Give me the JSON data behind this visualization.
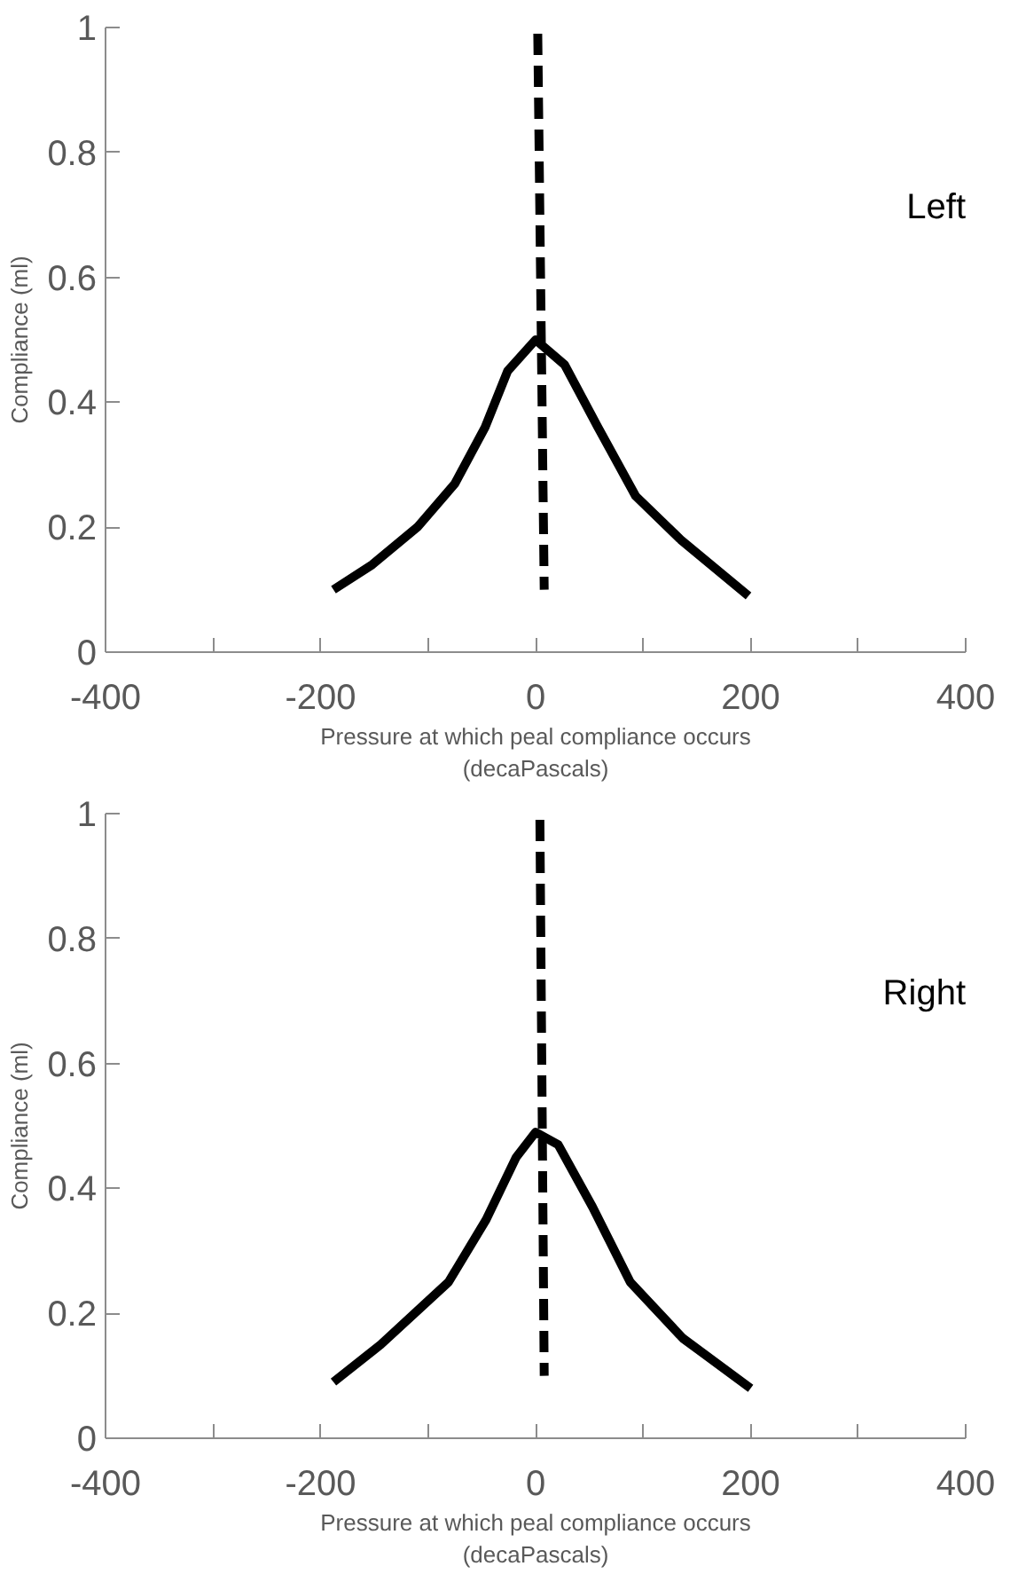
{
  "chart_data": [
    {
      "type": "line",
      "xlabel": "Pressure at which peal compliance occurs\n(decaPascals)",
      "ylabel": "Compliance (ml)",
      "annotations": [
        "Left"
      ],
      "xlim": [
        -400,
        400
      ],
      "ylim": [
        0,
        1
      ],
      "xticks": [
        -400,
        {
          "value": -300,
          "label": null
        },
        -200,
        {
          "value": -100,
          "label": null
        },
        0,
        {
          "value": 100,
          "label": null
        },
        200,
        {
          "value": 300,
          "label": null
        },
        400
      ],
      "yticks": [
        0,
        0.2,
        0.4,
        0.6,
        0.8,
        1
      ],
      "grid": false,
      "series": [
        {
          "color": "#000000",
          "line_style": "solid",
          "x": [
            -188,
            -152,
            -110,
            -75,
            -47,
            -26,
            0,
            27,
            58,
            93,
            135,
            198
          ],
          "values": [
            0.1,
            0.14,
            0.2,
            0.27,
            0.36,
            0.45,
            0.5,
            0.46,
            0.36,
            0.25,
            0.18,
            0.09
          ]
        },
        {
          "color": "#000000",
          "line_style": "dashed",
          "x": [
            2,
            8
          ],
          "values": [
            0.99,
            0.1
          ]
        }
      ]
    },
    {
      "type": "line",
      "xlabel": "Pressure at which peal compliance occurs\n(decaPascals)",
      "ylabel": "Compliance (ml)",
      "annotations": [
        "Right"
      ],
      "xlim": [
        -400,
        400
      ],
      "ylim": [
        0,
        1
      ],
      "xticks": [
        -400,
        {
          "value": -300,
          "label": null
        },
        -200,
        {
          "value": -100,
          "label": null
        },
        0,
        {
          "value": 100,
          "label": null
        },
        200,
        {
          "value": 300,
          "label": null
        },
        400
      ],
      "yticks": [
        0,
        0.2,
        0.4,
        0.6,
        0.8,
        1
      ],
      "grid": false,
      "series": [
        {
          "color": "#000000",
          "line_style": "solid",
          "x": [
            -188,
            -144,
            -81,
            -46,
            -18,
            0,
            21,
            53,
            88,
            137,
            200
          ],
          "values": [
            0.09,
            0.15,
            0.25,
            0.35,
            0.45,
            0.49,
            0.47,
            0.37,
            0.25,
            0.16,
            0.08
          ]
        },
        {
          "color": "#000000",
          "line_style": "dashed",
          "x": [
            4,
            8
          ],
          "values": [
            0.99,
            0.1
          ]
        }
      ]
    }
  ]
}
